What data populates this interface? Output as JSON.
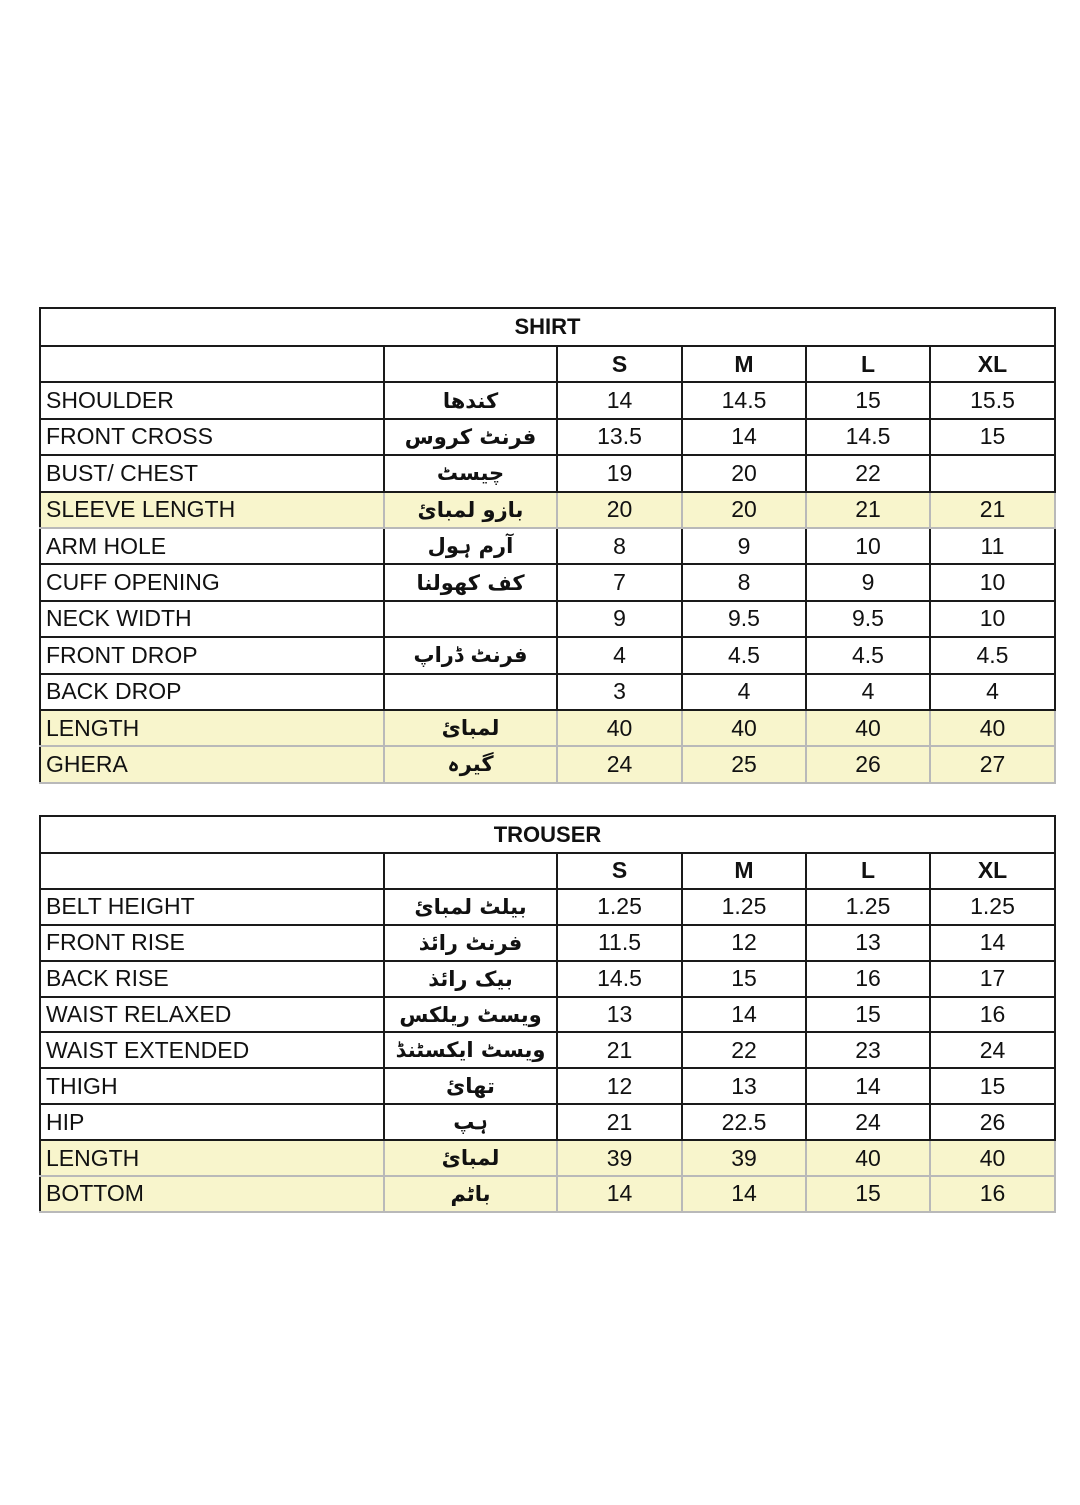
{
  "shirt": {
    "title": "SHIRT",
    "sizes": [
      "S",
      "M",
      "L",
      "XL"
    ],
    "highlight_color": "#f8f5cc",
    "rows": [
      {
        "label": "SHOULDER",
        "urdu": "کندھا",
        "values": [
          "14",
          "14.5",
          "15",
          "15.5"
        ],
        "highlight": false
      },
      {
        "label": "FRONT CROSS",
        "urdu": "فرنٹ کروس",
        "values": [
          "13.5",
          "14",
          "14.5",
          "15"
        ],
        "highlight": false
      },
      {
        "label": "BUST/ CHEST",
        "urdu": "چیسٹ",
        "values": [
          "19",
          "20",
          "22",
          ""
        ],
        "highlight": false
      },
      {
        "label": "SLEEVE LENGTH",
        "urdu": "بازو لمبائ",
        "values": [
          "20",
          "20",
          "21",
          "21"
        ],
        "highlight": true
      },
      {
        "label": "ARM HOLE",
        "urdu": "آرم ہول",
        "values": [
          "8",
          "9",
          "10",
          "11"
        ],
        "highlight": false
      },
      {
        "label": "CUFF OPENING",
        "urdu": "کف کھولنا",
        "values": [
          "7",
          "8",
          "9",
          "10"
        ],
        "highlight": false
      },
      {
        "label": "NECK WIDTH",
        "urdu": "",
        "values": [
          "9",
          "9.5",
          "9.5",
          "10"
        ],
        "highlight": false
      },
      {
        "label": "FRONT DROP",
        "urdu": "فرنٹ ڈراپ",
        "values": [
          "4",
          "4.5",
          "4.5",
          "4.5"
        ],
        "highlight": false
      },
      {
        "label": "BACK DROP",
        "urdu": "",
        "values": [
          "3",
          "4",
          "4",
          "4"
        ],
        "highlight": false
      },
      {
        "label": "LENGTH",
        "urdu": "لمبائ",
        "values": [
          "40",
          "40",
          "40",
          "40"
        ],
        "highlight": true
      },
      {
        "label": "GHERA",
        "urdu": "گیرہ",
        "values": [
          "24",
          "25",
          "26",
          "27"
        ],
        "highlight": true
      }
    ]
  },
  "trouser": {
    "title": "TROUSER",
    "sizes": [
      "S",
      "M",
      "L",
      "XL"
    ],
    "rows": [
      {
        "label": "BELT HEIGHT",
        "urdu": "بیلٹ  لمبائ",
        "values": [
          "1.25",
          "1.25",
          "1.25",
          "1.25"
        ],
        "highlight": false
      },
      {
        "label": "FRONT RISE",
        "urdu": "فرنٹ رائذ",
        "values": [
          "11.5",
          "12",
          "13",
          "14"
        ],
        "highlight": false
      },
      {
        "label": "BACK RISE",
        "urdu": "بیک رائذ",
        "values": [
          "14.5",
          "15",
          "16",
          "17"
        ],
        "highlight": false
      },
      {
        "label": "WAIST RELAXED",
        "urdu": "ویسٹ ریلکس",
        "values": [
          "13",
          "14",
          "15",
          "16"
        ],
        "highlight": false
      },
      {
        "label": "WAIST EXTENDED",
        "urdu": "ویسٹ ایکسٹنڈ",
        "values": [
          "21",
          "22",
          "23",
          "24"
        ],
        "highlight": false
      },
      {
        "label": "THIGH",
        "urdu": "تھائ",
        "values": [
          "12",
          "13",
          "14",
          "15"
        ],
        "highlight": false
      },
      {
        "label": "HIP",
        "urdu": "ہپ",
        "values": [
          "21",
          "22.5",
          "24",
          "26"
        ],
        "highlight": false
      },
      {
        "label": "LENGTH",
        "urdu": "لمبائ",
        "values": [
          "39",
          "39",
          "40",
          "40"
        ],
        "highlight": true
      },
      {
        "label": "BOTTOM",
        "urdu": "باٹم",
        "values": [
          "14",
          "14",
          "15",
          "16"
        ],
        "highlight": true
      }
    ]
  }
}
